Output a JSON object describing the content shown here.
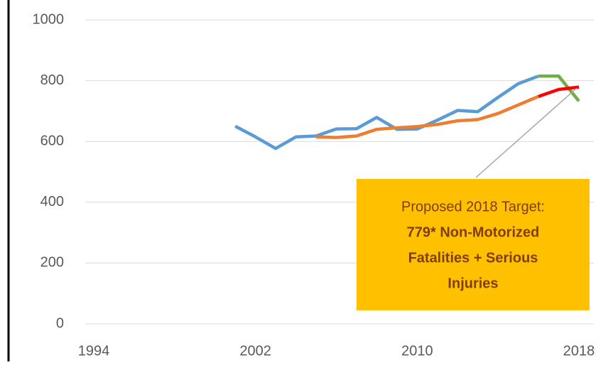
{
  "chart_data": {
    "type": "line",
    "x": [
      2001,
      2002,
      2003,
      2004,
      2005,
      2006,
      2007,
      2008,
      2009,
      2010,
      2011,
      2012,
      2013,
      2014,
      2015,
      2016,
      2017,
      2018
    ],
    "series": [
      {
        "color": "#5b9bd5",
        "values": [
          650,
          615,
          577,
          615,
          618,
          641,
          642,
          679,
          640,
          641,
          670,
          702,
          698,
          745,
          790,
          815,
          null,
          null
        ]
      },
      {
        "color": "#70ad47",
        "values": [
          null,
          null,
          null,
          null,
          null,
          null,
          null,
          null,
          null,
          null,
          null,
          null,
          null,
          null,
          null,
          815,
          815,
          733
        ]
      },
      {
        "color": "#ed7d31",
        "values": [
          null,
          null,
          null,
          null,
          615,
          613,
          618,
          640,
          645,
          649,
          656,
          668,
          672,
          692,
          720,
          748,
          null,
          null
        ]
      },
      {
        "color": "#ff0000",
        "values": [
          null,
          null,
          null,
          null,
          null,
          null,
          null,
          null,
          null,
          null,
          null,
          null,
          null,
          null,
          null,
          748,
          771,
          779
        ]
      }
    ],
    "xlim": [
      1994,
      2018
    ],
    "xticks": [
      1994,
      2002,
      2010,
      2018
    ],
    "ylim": [
      0,
      1000
    ],
    "yticks": [
      0,
      200,
      400,
      600,
      800,
      1000
    ],
    "grid": true,
    "annotation": {
      "lines": [
        "Proposed 2018 Target:",
        "779* Non-Motorized",
        "Fatalities + Serious",
        "Injuries"
      ],
      "color": "#ffc000"
    }
  }
}
